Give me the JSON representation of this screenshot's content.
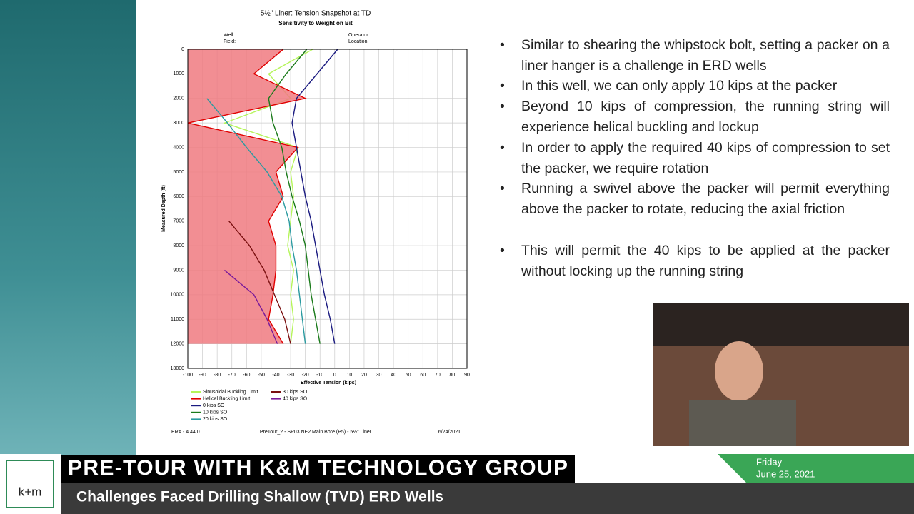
{
  "chart_data": {
    "type": "line",
    "title": "5½\" Liner: Tension Snapshot at TD",
    "subtitle": "Sensitivity to Weight on Bit",
    "x_label": "Effective Tension (kips)",
    "y_label": "Measured Depth (ft)",
    "xlim": [
      -100,
      90
    ],
    "xticks": [
      -100,
      -90,
      -80,
      -70,
      -60,
      -50,
      -40,
      -30,
      -20,
      -10,
      0,
      10,
      20,
      30,
      40,
      50,
      60,
      70,
      80,
      90
    ],
    "ylim": [
      13000,
      0
    ],
    "yticks": [
      0,
      1000,
      2000,
      3000,
      4000,
      5000,
      6000,
      7000,
      8000,
      9000,
      10000,
      11000,
      12000,
      13000
    ],
    "grid": true,
    "depths": [
      0,
      1000,
      2000,
      3000,
      4000,
      5000,
      6000,
      7000,
      8000,
      9000,
      10000,
      11000,
      12000
    ],
    "series": [
      {
        "name": "Sinusoidal Buckling Limit",
        "color": "#b5f55a",
        "values": [
          -15,
          -45,
          -30,
          -75,
          -25,
          -30,
          -28,
          -30,
          -32,
          -28,
          -30,
          -28,
          -30
        ]
      },
      {
        "name": "Helical Buckling Limit",
        "color": "#e00000",
        "fill_color": "#f07a80",
        "values": [
          -35,
          -55,
          -20,
          -100,
          -25,
          -40,
          -35,
          -45,
          -40,
          -40,
          -42,
          -45,
          -35
        ]
      },
      {
        "name": "0 kips SO",
        "color": "#1a1a80",
        "values": [
          2,
          -12,
          -26,
          -29,
          -26,
          -23,
          -20,
          -16,
          -13,
          -10,
          -7,
          -3,
          0
        ]
      },
      {
        "name": "10 kips SO",
        "color": "#1a7a1a",
        "values": [
          -19,
          -33,
          -45,
          -42,
          -36,
          -33,
          -29,
          -24,
          -20,
          -18,
          -16,
          -13,
          -10
        ]
      },
      {
        "name": "20 kips SO",
        "color": "#2a9aa0",
        "values": [
          null,
          null,
          -87,
          -73,
          -60,
          -46,
          -36,
          -31,
          -29,
          -26,
          -24,
          -22,
          -20
        ]
      },
      {
        "name": "30 kips SO",
        "color": "#7a1010",
        "values": [
          null,
          null,
          null,
          null,
          null,
          null,
          null,
          -72,
          -58,
          -48,
          -41,
          -34,
          -30
        ]
      },
      {
        "name": "40 kips SO",
        "color": "#7a1a9a",
        "values": [
          null,
          null,
          null,
          null,
          null,
          null,
          null,
          null,
          null,
          -75,
          -55,
          -46,
          -39
        ]
      }
    ],
    "header_labels": [
      "Well:",
      "Field:",
      "Operator:",
      "Location:"
    ],
    "footer": [
      "ERA - 4.44.0",
      "PreTour_2 - SP03 NE2 Main Bore (P5) - 5½\" Liner",
      "6/24/2021"
    ]
  },
  "slide": {
    "bullets": [
      "Similar to shearing the whipstock bolt, setting a packer on a liner hanger is a challenge in ERD wells",
      "In this well, we can only apply 10 kips at the packer",
      "Beyond 10 kips of compression, the running string will experience helical buckling and lockup",
      "In order to apply the required 40 kips of compression to set the packer, we require rotation",
      "Running a swivel above the packer will permit everything above the packer to rotate, reducing the axial friction",
      "This will permit the 40 kips to be applied at the packer without locking up the running string"
    ]
  },
  "lower_third": {
    "logo": "k+m",
    "headline": "PRE-TOUR WITH K&M TECHNOLOGY GROUP",
    "subline": "Challenges Faced Drilling Shallow (TVD) ERD Wells",
    "day": "Friday",
    "date": "June 25, 2021"
  }
}
